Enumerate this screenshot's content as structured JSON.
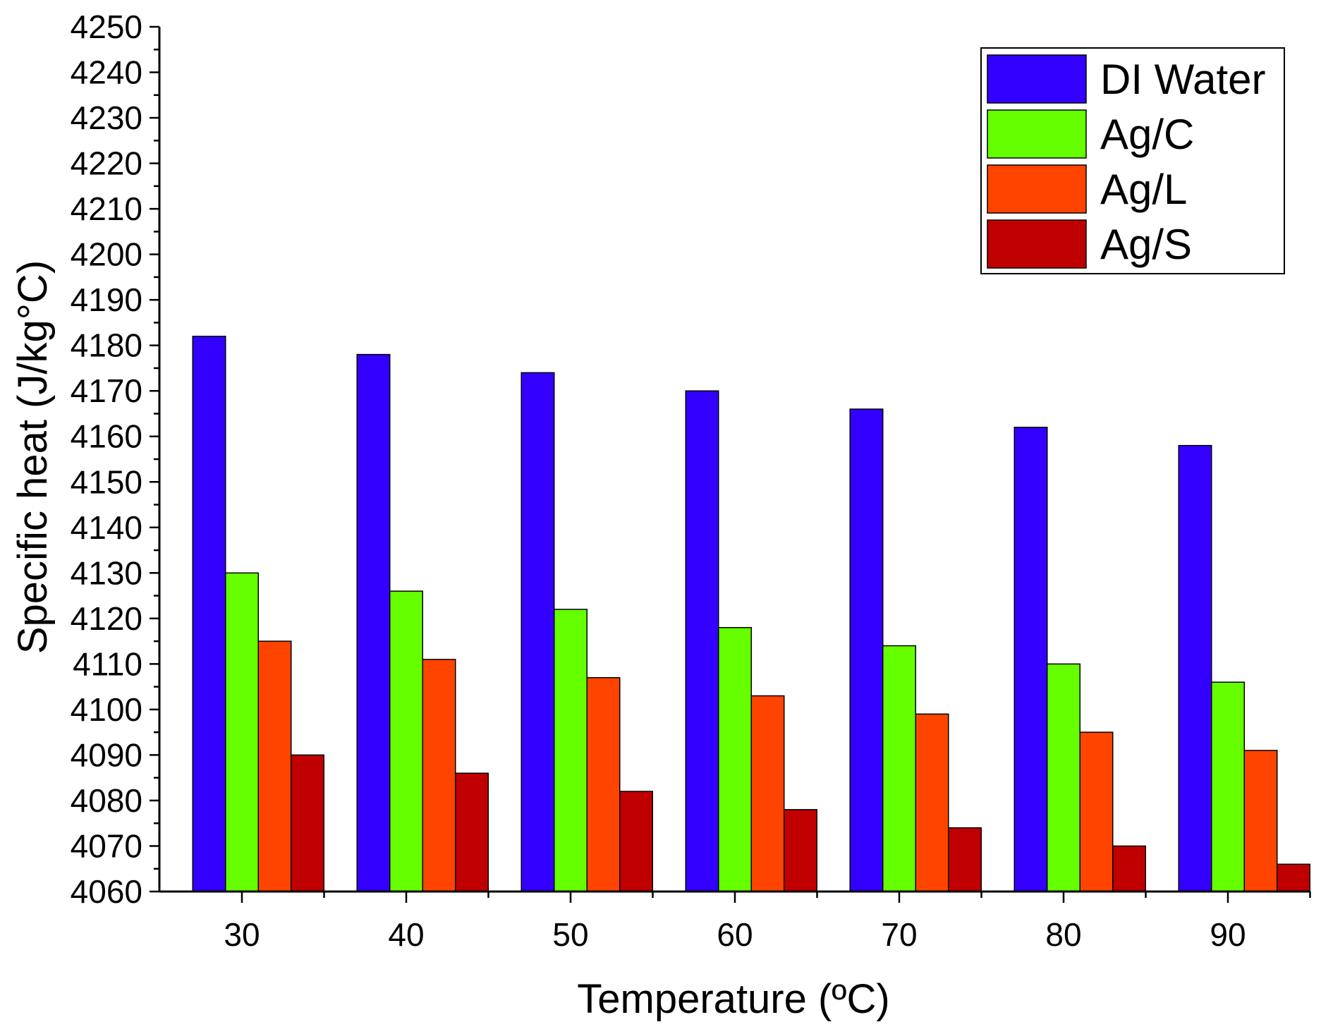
{
  "chart_data": {
    "type": "bar",
    "title": "",
    "xlabel": "Temperature (ºC)",
    "ylabel": "Specific heat (J/kg°C)",
    "categories": [
      "30",
      "40",
      "50",
      "60",
      "70",
      "80",
      "90"
    ],
    "ylim": [
      4060,
      4250
    ],
    "ytick_step": 10,
    "grid": false,
    "legend_position": "top-right",
    "series": [
      {
        "name": "DI Water",
        "color": "#3300FF",
        "values": [
          4182,
          4178,
          4174,
          4170,
          4166,
          4162,
          4158
        ]
      },
      {
        "name": "Ag/C",
        "color": "#66FF00",
        "values": [
          4130,
          4126,
          4122,
          4118,
          4114,
          4110,
          4106
        ]
      },
      {
        "name": "Ag/L",
        "color": "#FF4400",
        "values": [
          4115,
          4111,
          4107,
          4103,
          4099,
          4095,
          4091
        ]
      },
      {
        "name": "Ag/S",
        "color": "#C00000",
        "values": [
          4090,
          4086,
          4082,
          4078,
          4074,
          4070,
          4066
        ]
      }
    ]
  }
}
